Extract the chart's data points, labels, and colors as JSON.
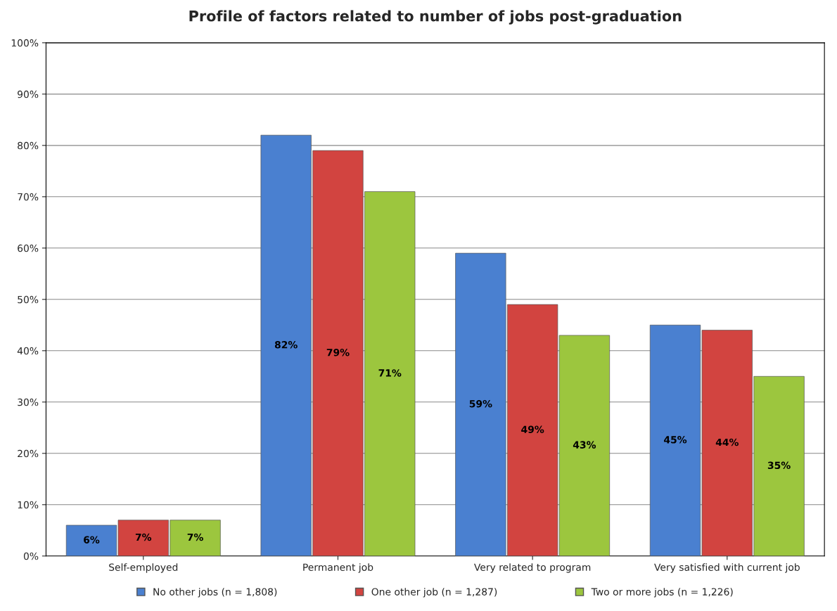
{
  "chart_data": {
    "type": "bar",
    "title": "Profile of factors related to number of jobs post-graduation",
    "categories": [
      "Self-employed",
      "Permanent job",
      "Very related to program",
      "Very satisfied with current job"
    ],
    "series": [
      {
        "name": "No other jobs (n = 1,808)",
        "color": "#4a80d0",
        "values": [
          6,
          82,
          59,
          45
        ],
        "value_labels": [
          "6%",
          "82%",
          "59%",
          "45%"
        ]
      },
      {
        "name": "One other job (n = 1,287)",
        "color": "#d24440",
        "values": [
          7,
          79,
          49,
          44
        ],
        "value_labels": [
          "7%",
          "79%",
          "49%",
          "44%"
        ]
      },
      {
        "name": "Two or more jobs (n = 1,226)",
        "color": "#9cc63e",
        "values": [
          7,
          71,
          43,
          35
        ],
        "value_labels": [
          "7%",
          "71%",
          "43%",
          "35%"
        ]
      }
    ],
    "ylim": [
      0,
      100
    ],
    "yticks": [
      {
        "value": 0,
        "label": "0%"
      },
      {
        "value": 10,
        "label": "10%"
      },
      {
        "value": 20,
        "label": "20%"
      },
      {
        "value": 30,
        "label": "30%"
      },
      {
        "value": 40,
        "label": "40%"
      },
      {
        "value": 50,
        "label": "50%"
      },
      {
        "value": 60,
        "label": "60%"
      },
      {
        "value": 70,
        "label": "70%"
      },
      {
        "value": 80,
        "label": "80%"
      },
      {
        "value": 90,
        "label": "90%"
      },
      {
        "value": 100,
        "label": "100%"
      }
    ],
    "grid": "y",
    "legend": "bottom"
  }
}
